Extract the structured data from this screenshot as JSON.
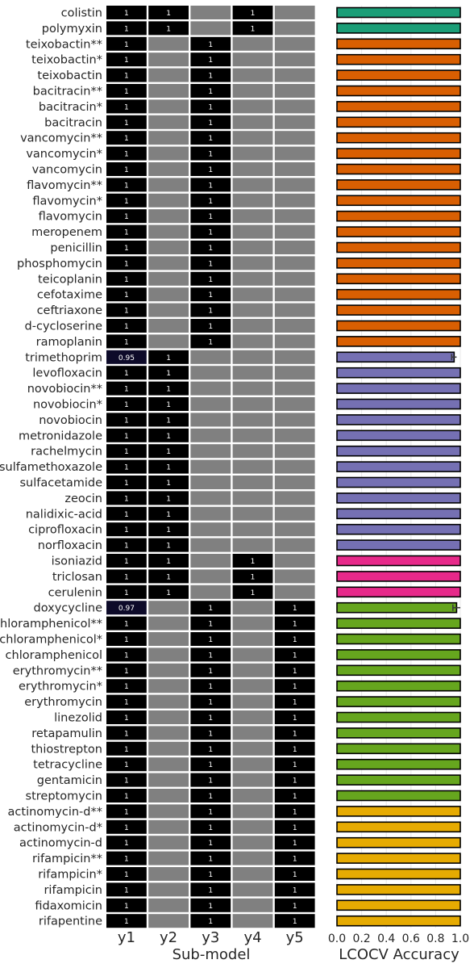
{
  "chart_data": [
    {
      "type": "heatmap",
      "xlabel": "Sub-model",
      "x_categories": [
        "y1",
        "y2",
        "y3",
        "y4",
        "y5"
      ],
      "y_categories": [
        "colistin",
        "polymyxin",
        "teixobactin**",
        "teixobactin*",
        "teixobactin",
        "bacitracin**",
        "bacitracin*",
        "bacitracin",
        "vancomycin**",
        "vancomycin*",
        "vancomycin",
        "flavomycin**",
        "flavomycin*",
        "flavomycin",
        "meropenem",
        "penicillin",
        "phosphomycin",
        "teicoplanin",
        "cefotaxime",
        "ceftriaxone",
        "d-cycloserine",
        "ramoplanin",
        "trimethoprim",
        "levofloxacin",
        "novobiocin**",
        "novobiocin*",
        "novobiocin",
        "metronidazole",
        "rachelmycin",
        "sulfamethoxazole",
        "sulfacetamide",
        "zeocin",
        "nalidixic-acid",
        "ciprofloxacin",
        "norfloxacin",
        "isoniazid",
        "triclosan",
        "cerulenin",
        "doxycycline",
        "chloramphenicol**",
        "chloramphenicol*",
        "chloramphenicol",
        "erythromycin**",
        "erythromycin*",
        "erythromycin",
        "linezolid",
        "retapamulin",
        "thiostrepton",
        "tetracycline",
        "gentamicin",
        "streptomycin",
        "actinomycin-d**",
        "actinomycin-d*",
        "actinomycin-d",
        "rifampicin**",
        "rifampicin*",
        "rifampicin",
        "fidaxomicin",
        "rifapentine"
      ],
      "values": [
        [
          1,
          1,
          null,
          1,
          null
        ],
        [
          1,
          1,
          null,
          1,
          null
        ],
        [
          1,
          null,
          1,
          null,
          null
        ],
        [
          1,
          null,
          1,
          null,
          null
        ],
        [
          1,
          null,
          1,
          null,
          null
        ],
        [
          1,
          null,
          1,
          null,
          null
        ],
        [
          1,
          null,
          1,
          null,
          null
        ],
        [
          1,
          null,
          1,
          null,
          null
        ],
        [
          1,
          null,
          1,
          null,
          null
        ],
        [
          1,
          null,
          1,
          null,
          null
        ],
        [
          1,
          null,
          1,
          null,
          null
        ],
        [
          1,
          null,
          1,
          null,
          null
        ],
        [
          1,
          null,
          1,
          null,
          null
        ],
        [
          1,
          null,
          1,
          null,
          null
        ],
        [
          1,
          null,
          1,
          null,
          null
        ],
        [
          1,
          null,
          1,
          null,
          null
        ],
        [
          1,
          null,
          1,
          null,
          null
        ],
        [
          1,
          null,
          1,
          null,
          null
        ],
        [
          1,
          null,
          1,
          null,
          null
        ],
        [
          1,
          null,
          1,
          null,
          null
        ],
        [
          1,
          null,
          1,
          null,
          null
        ],
        [
          1,
          null,
          1,
          null,
          null
        ],
        [
          0.95,
          1,
          null,
          null,
          null
        ],
        [
          1,
          1,
          null,
          null,
          null
        ],
        [
          1,
          1,
          null,
          null,
          null
        ],
        [
          1,
          1,
          null,
          null,
          null
        ],
        [
          1,
          1,
          null,
          null,
          null
        ],
        [
          1,
          1,
          null,
          null,
          null
        ],
        [
          1,
          1,
          null,
          null,
          null
        ],
        [
          1,
          1,
          null,
          null,
          null
        ],
        [
          1,
          1,
          null,
          null,
          null
        ],
        [
          1,
          1,
          null,
          null,
          null
        ],
        [
          1,
          1,
          null,
          null,
          null
        ],
        [
          1,
          1,
          null,
          null,
          null
        ],
        [
          1,
          1,
          null,
          null,
          null
        ],
        [
          1,
          1,
          null,
          1,
          null
        ],
        [
          1,
          1,
          null,
          1,
          null
        ],
        [
          1,
          1,
          null,
          1,
          null
        ],
        [
          0.97,
          null,
          1,
          null,
          1
        ],
        [
          1,
          null,
          1,
          null,
          1
        ],
        [
          1,
          null,
          1,
          null,
          1
        ],
        [
          1,
          null,
          1,
          null,
          1
        ],
        [
          1,
          null,
          1,
          null,
          1
        ],
        [
          1,
          null,
          1,
          null,
          1
        ],
        [
          1,
          null,
          1,
          null,
          1
        ],
        [
          1,
          null,
          1,
          null,
          1
        ],
        [
          1,
          null,
          1,
          null,
          1
        ],
        [
          1,
          null,
          1,
          null,
          1
        ],
        [
          1,
          null,
          1,
          null,
          1
        ],
        [
          1,
          null,
          1,
          null,
          1
        ],
        [
          1,
          null,
          1,
          null,
          1
        ],
        [
          1,
          null,
          1,
          null,
          1
        ],
        [
          1,
          null,
          1,
          null,
          1
        ],
        [
          1,
          null,
          1,
          null,
          1
        ],
        [
          1,
          null,
          1,
          null,
          1
        ],
        [
          1,
          null,
          1,
          null,
          1
        ],
        [
          1,
          null,
          1,
          null,
          1
        ],
        [
          1,
          null,
          1,
          null,
          1
        ],
        [
          1,
          null,
          1,
          null,
          1
        ]
      ],
      "cell_color_value": "#000000",
      "cell_color_high": "#000000",
      "cell_color_low": "#0d0a29",
      "cell_color_empty": "#808080"
    },
    {
      "type": "bar",
      "orientation": "horizontal",
      "xlabel": "LCOCV Accuracy",
      "xlim": [
        0,
        1
      ],
      "xticks": [
        "0.0",
        "0.2",
        "0.4",
        "0.6",
        "0.8",
        "1.0"
      ],
      "grid": true,
      "values": [
        1,
        1,
        1,
        1,
        1,
        1,
        1,
        1,
        1,
        1,
        1,
        1,
        1,
        1,
        1,
        1,
        1,
        1,
        1,
        1,
        1,
        1,
        0.95,
        1,
        1,
        1,
        1,
        1,
        1,
        1,
        1,
        1,
        1,
        1,
        1,
        1,
        1,
        1,
        0.97,
        1,
        1,
        1,
        1,
        1,
        1,
        1,
        1,
        1,
        1,
        1,
        1,
        1,
        1,
        1,
        1,
        1,
        1,
        1,
        1
      ],
      "errors": [
        0,
        0,
        0,
        0,
        0,
        0,
        0,
        0,
        0,
        0,
        0,
        0,
        0,
        0,
        0,
        0,
        0,
        0,
        0,
        0,
        0,
        0,
        0.02,
        0,
        0,
        0,
        0,
        0,
        0,
        0,
        0,
        0,
        0,
        0,
        0,
        0,
        0,
        0,
        0.03,
        0,
        0,
        0,
        0,
        0,
        0,
        0,
        0,
        0,
        0,
        0,
        0,
        0,
        0,
        0,
        0,
        0,
        0,
        0,
        0
      ],
      "group_sizes": [
        2,
        20,
        13,
        3,
        13,
        8
      ],
      "group_colors": [
        "#1b9e77",
        "#d95f02",
        "#7570b3",
        "#e7298a",
        "#66a61e",
        "#e6ab02"
      ]
    }
  ]
}
